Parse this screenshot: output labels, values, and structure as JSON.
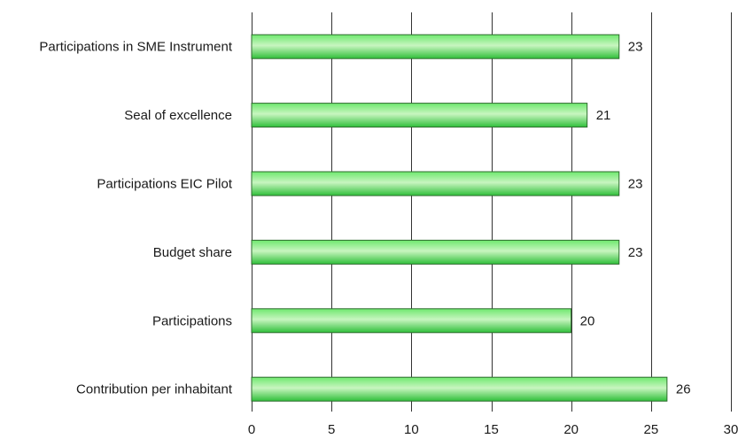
{
  "chart_data": {
    "type": "bar",
    "orientation": "horizontal",
    "categories": [
      "Participations in SME Instrument",
      "Seal of excellence",
      "Participations EIC Pilot",
      "Budget share",
      "Participations",
      "Contribution per inhabitant"
    ],
    "values": [
      23,
      21,
      23,
      23,
      20,
      26
    ],
    "xlim": [
      0,
      30
    ],
    "xticks": [
      0,
      5,
      10,
      15,
      20,
      25,
      30
    ],
    "grid": true,
    "colors": {
      "bar_light": "#c8f5c0",
      "bar_mid": "#6ee86e",
      "bar_dark": "#2fbf3a",
      "bar_outline": "#2e6b2e"
    }
  }
}
